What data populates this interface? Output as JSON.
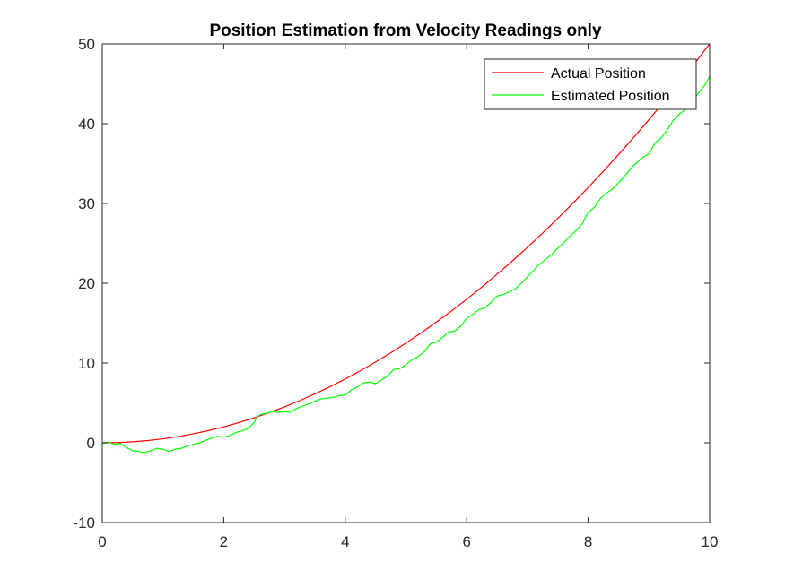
{
  "chart_data": {
    "type": "line",
    "title": "Position Estimation from Velocity Readings only",
    "xlabel": "",
    "ylabel": "",
    "xlim": [
      0,
      10
    ],
    "ylim": [
      -10,
      50
    ],
    "xticks": [
      0,
      2,
      4,
      6,
      8,
      10
    ],
    "yticks": [
      -10,
      0,
      10,
      20,
      30,
      40,
      50
    ],
    "xtick_labels": [
      "0",
      "2",
      "4",
      "6",
      "8",
      "10"
    ],
    "ytick_labels": [
      "-10",
      "0",
      "10",
      "20",
      "30",
      "40",
      "50"
    ],
    "grid": false,
    "legend_position": "top-right",
    "series": [
      {
        "name": "Actual Position",
        "color": "#ff0000",
        "x": [
          0,
          0.25,
          0.5,
          0.75,
          1,
          1.25,
          1.5,
          1.75,
          2,
          2.25,
          2.5,
          2.75,
          3,
          3.25,
          3.5,
          3.75,
          4,
          4.25,
          4.5,
          4.75,
          5,
          5.25,
          5.5,
          5.75,
          6,
          6.25,
          6.5,
          6.75,
          7,
          7.25,
          7.5,
          7.75,
          8,
          8.25,
          8.5,
          8.75,
          9,
          9.25,
          9.5,
          9.75,
          10
        ],
        "y": [
          0,
          0.03,
          0.13,
          0.28,
          0.5,
          0.78,
          1.13,
          1.53,
          2,
          2.53,
          3.13,
          3.78,
          4.5,
          5.28,
          6.13,
          7.03,
          8,
          9.03,
          10.13,
          11.28,
          12.5,
          13.78,
          15.13,
          16.53,
          18,
          19.53,
          21.13,
          22.78,
          24.5,
          26.28,
          28.13,
          30.03,
          32,
          34.03,
          36.13,
          38.28,
          40.5,
          42.78,
          45.13,
          47.53,
          50
        ]
      },
      {
        "name": "Estimated Position",
        "color": "#00ff00",
        "x": [
          0,
          0.1,
          0.2,
          0.3,
          0.4,
          0.5,
          0.6,
          0.7,
          0.8,
          0.9,
          1.0,
          1.1,
          1.2,
          1.3,
          1.4,
          1.5,
          1.6,
          1.7,
          1.8,
          1.9,
          2.0,
          2.1,
          2.2,
          2.3,
          2.4,
          2.5,
          2.55,
          2.6,
          2.7,
          2.8,
          2.9,
          3.0,
          3.1,
          3.2,
          3.3,
          3.4,
          3.5,
          3.6,
          3.7,
          3.8,
          3.9,
          4.0,
          4.1,
          4.2,
          4.3,
          4.4,
          4.5,
          4.6,
          4.7,
          4.8,
          4.9,
          5.0,
          5.1,
          5.2,
          5.3,
          5.4,
          5.5,
          5.6,
          5.7,
          5.8,
          5.9,
          6.0,
          6.1,
          6.2,
          6.3,
          6.4,
          6.5,
          6.6,
          6.7,
          6.8,
          6.9,
          7.0,
          7.1,
          7.2,
          7.3,
          7.4,
          7.5,
          7.6,
          7.7,
          7.8,
          7.9,
          8.0,
          8.1,
          8.2,
          8.3,
          8.4,
          8.5,
          8.6,
          8.7,
          8.8,
          8.9,
          9.0,
          9.1,
          9.2,
          9.3,
          9.4,
          9.5,
          9.6,
          9.7,
          9.8,
          9.9,
          10.0
        ],
        "y": [
          -0.1,
          0.1,
          -0.2,
          -0.1,
          -0.6,
          -1.0,
          -1.1,
          -1.2,
          -1.0,
          -0.7,
          -0.8,
          -1.1,
          -0.8,
          -0.7,
          -0.4,
          -0.2,
          0.0,
          0.3,
          0.6,
          0.8,
          0.7,
          0.9,
          1.3,
          1.5,
          1.8,
          2.5,
          3.3,
          3.5,
          3.7,
          3.9,
          3.8,
          3.9,
          3.8,
          4.3,
          4.6,
          4.9,
          5.2,
          5.5,
          5.6,
          5.7,
          5.9,
          6.0,
          6.6,
          7.0,
          7.5,
          7.6,
          7.4,
          7.9,
          8.4,
          9.2,
          9.3,
          9.8,
          10.4,
          10.8,
          11.4,
          12.4,
          12.6,
          13.2,
          13.9,
          14.0,
          14.6,
          15.6,
          16.1,
          16.7,
          16.9,
          17.6,
          18.4,
          18.6,
          18.9,
          19.3,
          20.0,
          20.8,
          21.6,
          22.4,
          23.0,
          23.6,
          24.4,
          25.1,
          25.9,
          26.6,
          27.4,
          28.9,
          29.5,
          30.6,
          31.3,
          31.8,
          32.6,
          33.4,
          34.4,
          35.1,
          35.8,
          36.2,
          37.6,
          38.2,
          39.2,
          40.4,
          41.2,
          41.8,
          42.4,
          43.7,
          44.6,
          45.9
        ]
      }
    ]
  }
}
